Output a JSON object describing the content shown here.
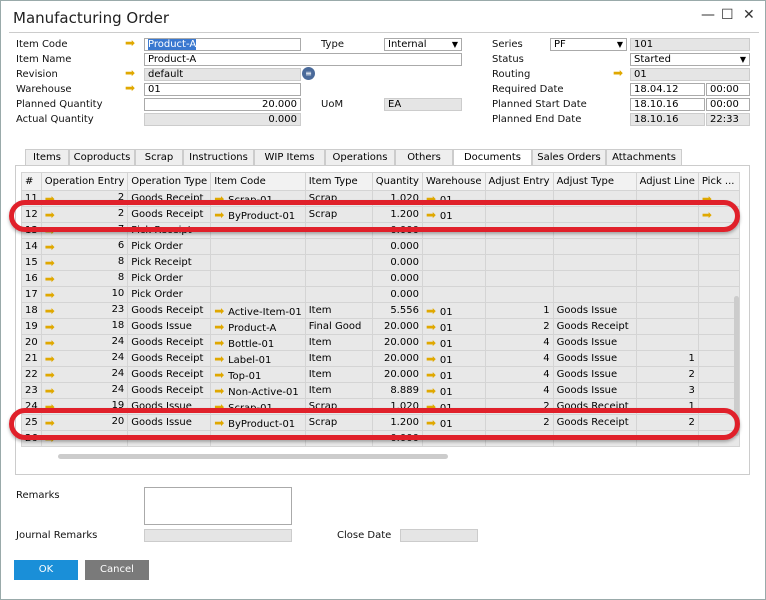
{
  "window": {
    "title": "Manufacturing Order"
  },
  "header": {
    "item_code_label": "Item Code",
    "item_code": "Product-A",
    "item_name_label": "Item Name",
    "item_name": "Product-A",
    "revision_label": "Revision",
    "revision": "default",
    "warehouse_label": "Warehouse",
    "warehouse": "01",
    "planned_qty_label": "Planned Quantity",
    "planned_qty": "20.000",
    "actual_qty_label": "Actual Quantity",
    "actual_qty": "0.000",
    "type_label": "Type",
    "type": "Internal",
    "uom_label": "UoM",
    "uom": "EA",
    "series_label": "Series",
    "series": "PF",
    "series_no": "101",
    "status_label": "Status",
    "status": "Started",
    "routing_label": "Routing",
    "routing": "01",
    "required_date_label": "Required Date",
    "required_date": "18.04.12",
    "required_time": "00:00",
    "planned_start_label": "Planned Start Date",
    "planned_start": "18.10.16",
    "planned_start_time": "00:00",
    "planned_end_label": "Planned End Date",
    "planned_end": "18.10.16",
    "planned_end_time": "22:33"
  },
  "tabs": [
    "Items",
    "Coproducts",
    "Scrap",
    "Instructions",
    "WIP Items",
    "Operations",
    "Others",
    "Documents",
    "Sales Orders",
    "Attachments"
  ],
  "active_tab": "Documents",
  "table": {
    "columns": [
      "#",
      "Operation Entry",
      "Operation Type",
      "Item Code",
      "Item Type",
      "Quantity",
      "Warehouse",
      "Adjust Entry",
      "Adjust Type",
      "Adjust Line",
      "Pick ..."
    ],
    "rows": [
      [
        "11",
        "2",
        "Goods Receipt",
        "Scrap-01",
        "Scrap",
        "1.020",
        "01",
        "",
        "",
        "",
        ""
      ],
      [
        "12",
        "2",
        "Goods Receipt",
        "ByProduct-01",
        "Scrap",
        "1.200",
        "01",
        "",
        "",
        "",
        ""
      ],
      [
        "13",
        "7",
        "Pick Receipt",
        "",
        "",
        "0.000",
        "",
        "",
        "",
        "",
        ""
      ],
      [
        "14",
        "6",
        "Pick Order",
        "",
        "",
        "0.000",
        "",
        "",
        "",
        "",
        ""
      ],
      [
        "15",
        "8",
        "Pick Receipt",
        "",
        "",
        "0.000",
        "",
        "",
        "",
        "",
        ""
      ],
      [
        "16",
        "8",
        "Pick Order",
        "",
        "",
        "0.000",
        "",
        "",
        "",
        "",
        ""
      ],
      [
        "17",
        "10",
        "Pick Order",
        "",
        "",
        "0.000",
        "",
        "",
        "",
        "",
        ""
      ],
      [
        "18",
        "23",
        "Goods Receipt",
        "Active-Item-01",
        "Item",
        "5.556",
        "01",
        "1",
        "Goods Issue",
        "",
        ""
      ],
      [
        "19",
        "18",
        "Goods Issue",
        "Product-A",
        "Final Good",
        "20.000",
        "01",
        "2",
        "Goods Receipt",
        "",
        ""
      ],
      [
        "20",
        "24",
        "Goods Receipt",
        "Bottle-01",
        "Item",
        "20.000",
        "01",
        "4",
        "Goods Issue",
        "",
        ""
      ],
      [
        "21",
        "24",
        "Goods Receipt",
        "Label-01",
        "Item",
        "20.000",
        "01",
        "4",
        "Goods Issue",
        "1",
        ""
      ],
      [
        "22",
        "24",
        "Goods Receipt",
        "Top-01",
        "Item",
        "20.000",
        "01",
        "4",
        "Goods Issue",
        "2",
        ""
      ],
      [
        "23",
        "24",
        "Goods Receipt",
        "Non-Active-01",
        "Item",
        "8.889",
        "01",
        "4",
        "Goods Issue",
        "3",
        ""
      ],
      [
        "24",
        "19",
        "Goods Issue",
        "Scrap-01",
        "Scrap",
        "1.020",
        "01",
        "2",
        "Goods Receipt",
        "1",
        ""
      ],
      [
        "25",
        "20",
        "Goods Issue",
        "ByProduct-01",
        "Scrap",
        "1.200",
        "01",
        "2",
        "Goods Receipt",
        "2",
        ""
      ],
      [
        "26",
        "",
        "",
        "",
        "",
        "0.000",
        "",
        "",
        "",
        "",
        ""
      ]
    ],
    "pick_arrow_rows": [
      "11",
      "12"
    ],
    "highlighted_rows": [
      "12",
      "25"
    ]
  },
  "footer": {
    "remarks_label": "Remarks",
    "journal_remarks_label": "Journal Remarks",
    "close_date_label": "Close Date",
    "ok": "OK",
    "cancel": "Cancel"
  },
  "colors": {
    "highlight": "#e0202a",
    "arrow": "#e0a800",
    "ok_button": "#1a8fd8",
    "cancel_button": "#7a7a7a"
  }
}
